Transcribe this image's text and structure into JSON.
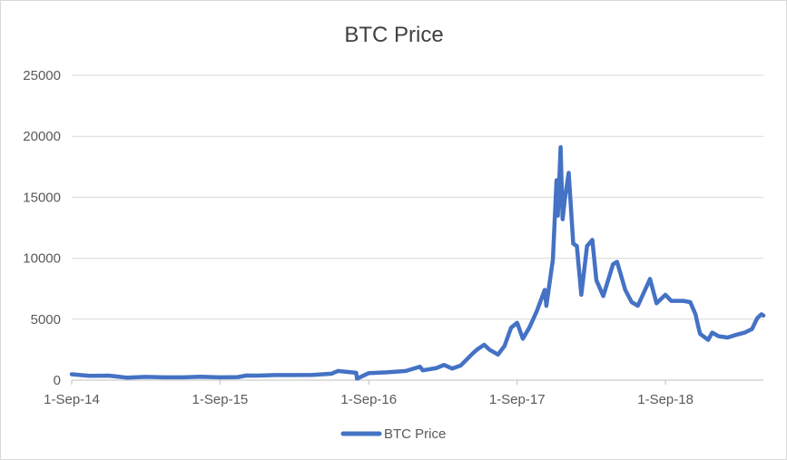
{
  "chart_data": {
    "type": "line",
    "title": "BTC Price",
    "xlabel": "",
    "ylabel": "",
    "x_ticks": [
      "1-Sep-14",
      "1-Sep-15",
      "1-Sep-16",
      "1-Sep-17",
      "1-Sep-18"
    ],
    "y_ticks": [
      0,
      5000,
      10000,
      15000,
      20000,
      25000
    ],
    "xlim": [
      "2014-09-01",
      "2019-04-30"
    ],
    "ylim": [
      0,
      25000
    ],
    "grid": "horizontal",
    "legend_position": "bottom",
    "series": [
      {
        "name": "BTC Price",
        "color": "#4472c4",
        "x": [
          "2014-09-01",
          "2014-10-15",
          "2014-12-01",
          "2015-01-14",
          "2015-03-01",
          "2015-04-15",
          "2015-06-01",
          "2015-07-15",
          "2015-09-01",
          "2015-10-15",
          "2015-11-05",
          "2015-12-01",
          "2016-01-15",
          "2016-03-01",
          "2016-04-15",
          "2016-06-01",
          "2016-06-17",
          "2016-07-15",
          "2016-08-01",
          "2016-08-03",
          "2016-09-01",
          "2016-10-15",
          "2016-12-01",
          "2017-01-05",
          "2017-01-12",
          "2017-02-15",
          "2017-03-05",
          "2017-03-25",
          "2017-04-15",
          "2017-05-15",
          "2017-05-25",
          "2017-06-12",
          "2017-06-25",
          "2017-07-16",
          "2017-08-01",
          "2017-08-17",
          "2017-09-01",
          "2017-09-15",
          "2017-10-01",
          "2017-10-20",
          "2017-11-08",
          "2017-11-12",
          "2017-11-28",
          "2017-12-07",
          "2017-12-10",
          "2017-12-17",
          "2017-12-22",
          "2017-12-28",
          "2018-01-06",
          "2018-01-17",
          "2018-01-26",
          "2018-02-06",
          "2018-02-20",
          "2018-03-05",
          "2018-03-15",
          "2018-04-01",
          "2018-04-25",
          "2018-05-05",
          "2018-05-25",
          "2018-06-10",
          "2018-06-25",
          "2018-07-25",
          "2018-08-10",
          "2018-09-01",
          "2018-09-15",
          "2018-10-15",
          "2018-11-01",
          "2018-11-14",
          "2018-11-20",
          "2018-11-25",
          "2018-12-15",
          "2018-12-25",
          "2019-01-10",
          "2019-02-01",
          "2019-02-20",
          "2019-03-15",
          "2019-04-02",
          "2019-04-15",
          "2019-04-25",
          "2019-04-30"
        ],
        "values": [
          480,
          360,
          370,
          210,
          270,
          230,
          230,
          280,
          230,
          250,
          380,
          370,
          420,
          420,
          430,
          530,
          750,
          660,
          600,
          120,
          580,
          640,
          750,
          1100,
          800,
          1000,
          1250,
          950,
          1200,
          2200,
          2500,
          2900,
          2500,
          2100,
          2800,
          4300,
          4700,
          3400,
          4300,
          5700,
          7400,
          6100,
          9900,
          16400,
          13500,
          19100,
          13200,
          15000,
          17000,
          11200,
          11000,
          7000,
          11000,
          11500,
          8200,
          6900,
          9500,
          9700,
          7400,
          6400,
          6100,
          8300,
          6300,
          7000,
          6500,
          6500,
          6400,
          5400,
          4500,
          3800,
          3300,
          3900,
          3600,
          3500,
          3700,
          3900,
          4200,
          5100,
          5400,
          5300
        ]
      }
    ]
  }
}
